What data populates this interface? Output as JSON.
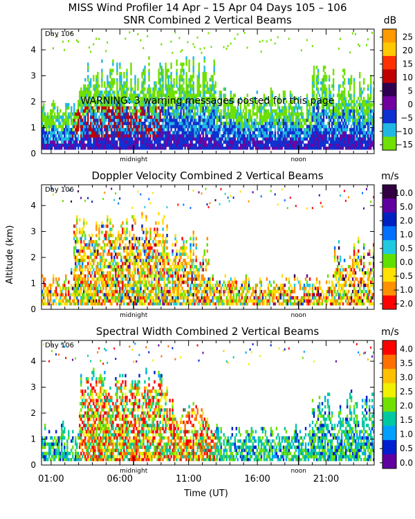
{
  "main_title": "MISS Wind Profiler  14 Apr – 15 Apr 04 Days 105 – 106",
  "y_axis_label": "Altitude (km)",
  "x_axis_label": "Time (UT)",
  "x_ticks": [
    "01:00",
    "06:00",
    "11:00",
    "16:00",
    "21:00"
  ],
  "day_marks": [
    "midnight",
    "noon"
  ],
  "chart_data": [
    {
      "type": "heatmap",
      "title": "SNR Combined 2 Vertical Beams",
      "unit": "dB",
      "day_label": "Day 106",
      "warning": "WARNING:  3 warning messages posted for this page",
      "ylim": [
        0,
        4.8
      ],
      "y_ticks": [
        "0",
        "1",
        "2",
        "3",
        "4"
      ],
      "x_range_hours": [
        0.3,
        24.5
      ],
      "colorbar": {
        "labels": [
          "25",
          "20",
          "15",
          "10",
          "5",
          "0",
          "−5",
          "−10",
          "−15"
        ],
        "colors": [
          "#ff9a00",
          "#ffc800",
          "#ff3000",
          "#c00000",
          "#300050",
          "#7000a0",
          "#1030d0",
          "#20b8e0",
          "#70e000"
        ]
      }
    },
    {
      "type": "heatmap",
      "title": "Doppler Velocity Combined 2 Vertical Beams",
      "unit": "m/s",
      "day_label": "Day 106",
      "ylim": [
        0,
        4.8
      ],
      "y_ticks": [
        "0",
        "1",
        "2",
        "3",
        "4"
      ],
      "x_range_hours": [
        0.3,
        24.5
      ],
      "colorbar": {
        "labels": [
          "10.0",
          "5.0",
          "2.0",
          "1.0",
          "0.5",
          "0.0",
          "−0.5",
          "−1.0",
          "−2.0"
        ],
        "colors": [
          "#300040",
          "#6000a0",
          "#0020c0",
          "#0070ff",
          "#20c8e0",
          "#60e000",
          "#ffe000",
          "#ff9000",
          "#ff0000"
        ]
      }
    },
    {
      "type": "heatmap",
      "title": "Spectral Width Combined 2 Vertical Beams",
      "unit": "m/s",
      "day_label": "Day 106",
      "ylim": [
        0,
        4.8
      ],
      "y_ticks": [
        "0",
        "1",
        "2",
        "3",
        "4"
      ],
      "x_range_hours": [
        0.3,
        24.5
      ],
      "colorbar": {
        "labels": [
          "4.0",
          "3.5",
          "3.0",
          "2.5",
          "2.0",
          "1.5",
          "1.0",
          "0.5",
          "0.0"
        ],
        "colors": [
          "#ff0000",
          "#ff7000",
          "#ffc000",
          "#f0f000",
          "#70e000",
          "#00c8a0",
          "#00a0ff",
          "#0020d0",
          "#6000a0"
        ]
      }
    }
  ]
}
